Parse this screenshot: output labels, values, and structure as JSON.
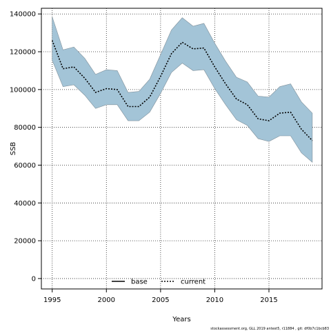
{
  "chart_data": {
    "type": "line",
    "xlabel": "Years",
    "ylabel": "SSB",
    "xlim": [
      1994,
      2019.9
    ],
    "ylim": [
      -5500,
      143000
    ],
    "xticks": [
      1995,
      2000,
      2005,
      2010,
      2015
    ],
    "yticks": [
      0,
      20000,
      40000,
      60000,
      80000,
      100000,
      120000,
      140000
    ],
    "grid": true,
    "legend_position": "bottom-center",
    "colors": {
      "band": "#a3c4d7",
      "band_edge": "#7f8f99",
      "base": "#000000",
      "current": "#000000",
      "grid": "#222222"
    },
    "x": [
      1995,
      1996,
      1997,
      1998,
      1999,
      2000,
      2001,
      2002,
      2003,
      2004,
      2005,
      2006,
      2007,
      2008,
      2009,
      2010,
      2011,
      2012,
      2013,
      2014,
      2015,
      2016,
      2017,
      2018,
      2019
    ],
    "series": [
      {
        "name": "base",
        "style": "solid",
        "values": [
          126000,
          111000,
          112000,
          106000,
          98500,
          100500,
          100000,
          91000,
          91000,
          96000,
          107000,
          119000,
          125000,
          121500,
          122000,
          112000,
          103000,
          95000,
          92000,
          84500,
          83500,
          87500,
          88000,
          79000,
          73000
        ]
      },
      {
        "name": "current",
        "style": "dotted",
        "values": [
          126000,
          111000,
          112000,
          106000,
          98500,
          100500,
          100000,
          91000,
          91000,
          96000,
          107000,
          119000,
          125000,
          121500,
          122000,
          112000,
          103000,
          95000,
          92000,
          84500,
          83500,
          87500,
          88000,
          79000,
          73000
        ]
      }
    ],
    "band": {
      "upper": [
        138500,
        121000,
        122500,
        116500,
        108000,
        110500,
        110000,
        98500,
        99000,
        105500,
        118500,
        131500,
        138000,
        133500,
        135000,
        124500,
        115000,
        106500,
        104000,
        96500,
        96000,
        101500,
        103000,
        93500,
        87500
      ],
      "lower": [
        115500,
        101500,
        102500,
        97000,
        90000,
        92000,
        92000,
        83500,
        83500,
        88000,
        98000,
        109000,
        114000,
        110000,
        110500,
        100500,
        92000,
        84000,
        81000,
        74000,
        72500,
        75500,
        75500,
        66500,
        61500
      ]
    }
  },
  "footnote": "stockassessment.org, GLL 2019 antest5, r11884 , git: df0b7c1bcb83"
}
